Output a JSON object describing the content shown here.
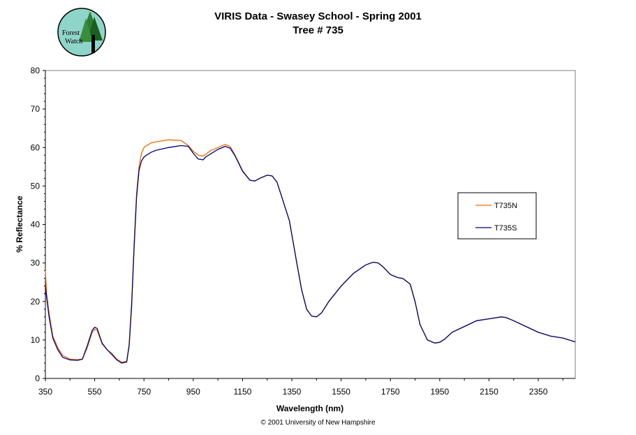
{
  "logo": {
    "line1": "Forest",
    "line2": "Watch",
    "icon": "forest-watch-logo"
  },
  "footer": {
    "copyright": "© 2001 University of New Hampshire"
  },
  "colors": {
    "T735N": "#ff6600",
    "T735S": "#000080"
  },
  "chart_data": {
    "type": "line",
    "title": "VIRIS Data - Swasey School - Spring 2001",
    "subtitle": "Tree # 735",
    "xlabel": "Wavelength (nm)",
    "ylabel": "% Reflectance",
    "xlim": [
      350,
      2500
    ],
    "ylim": [
      0,
      80
    ],
    "xticks": [
      350,
      550,
      750,
      950,
      1150,
      1350,
      1550,
      1750,
      1950,
      2150,
      2350
    ],
    "yticks": [
      0,
      10,
      20,
      30,
      40,
      50,
      60,
      70,
      80
    ],
    "grid": false,
    "legend_position": "right",
    "series": [
      {
        "name": "T735N",
        "x": [
          350,
          355,
          365,
          380,
          400,
          420,
          450,
          480,
          500,
          520,
          540,
          550,
          560,
          580,
          600,
          620,
          640,
          660,
          680,
          690,
          700,
          710,
          720,
          730,
          740,
          750,
          760,
          780,
          800,
          850,
          900,
          930,
          950,
          970,
          990,
          1000,
          1020,
          1050,
          1080,
          1100,
          1120,
          1150,
          1180,
          1200,
          1220,
          1250,
          1270,
          1290,
          1310,
          1340,
          1370,
          1390,
          1410,
          1430,
          1450,
          1470,
          1500,
          1550,
          1600,
          1650,
          1680,
          1700,
          1720,
          1750,
          1780,
          1800,
          1830,
          1850,
          1870,
          1900,
          1930,
          1950,
          1970,
          2000,
          2050,
          2100,
          2150,
          2200,
          2220,
          2250,
          2300,
          2350,
          2400,
          2450,
          2500
        ],
        "y": [
          28,
          22,
          17,
          11,
          8,
          6,
          5,
          4.9,
          5,
          8,
          12,
          12.8,
          12.5,
          9,
          7.5,
          6.5,
          5,
          4.2,
          4.5,
          9,
          20,
          35,
          48,
          55,
          58.5,
          60,
          60.5,
          61.2,
          61.5,
          62,
          61.8,
          60.5,
          59,
          58,
          57.8,
          58.2,
          59.2,
          60,
          60.8,
          60.2,
          58,
          54,
          51.5,
          51.3,
          52,
          52.8,
          52.6,
          51,
          47,
          41,
          30,
          23,
          18,
          16.2,
          16,
          17,
          20,
          24,
          27.3,
          29.5,
          30.2,
          30,
          29,
          27,
          26.2,
          26,
          24.5,
          20,
          14,
          10,
          9.2,
          9.4,
          10.2,
          12,
          13.5,
          15,
          15.5,
          16,
          15.8,
          15,
          13.5,
          12,
          11,
          10.5,
          9.5
        ]
      },
      {
        "name": "T735S",
        "x": [
          350,
          355,
          365,
          380,
          400,
          420,
          450,
          480,
          500,
          520,
          540,
          550,
          560,
          580,
          600,
          620,
          640,
          660,
          680,
          690,
          700,
          710,
          720,
          730,
          740,
          750,
          760,
          780,
          800,
          850,
          900,
          930,
          950,
          970,
          990,
          1000,
          1020,
          1050,
          1080,
          1100,
          1120,
          1150,
          1180,
          1200,
          1220,
          1250,
          1270,
          1290,
          1310,
          1340,
          1370,
          1390,
          1410,
          1430,
          1450,
          1470,
          1500,
          1550,
          1600,
          1650,
          1680,
          1700,
          1720,
          1750,
          1780,
          1800,
          1830,
          1850,
          1870,
          1900,
          1930,
          1950,
          1970,
          2000,
          2050,
          2100,
          2150,
          2200,
          2220,
          2250,
          2300,
          2350,
          2400,
          2450,
          2500
        ],
        "y": [
          24,
          21,
          16,
          10.5,
          7.5,
          5.5,
          4.8,
          4.7,
          5,
          8.5,
          12.5,
          13.3,
          13,
          9.2,
          7.5,
          6.2,
          4.8,
          4,
          4.3,
          8.5,
          19,
          34,
          47,
          54,
          56.5,
          57.5,
          58,
          58.8,
          59.3,
          60,
          60.5,
          60.3,
          58.5,
          57,
          56.8,
          57.5,
          58.3,
          59.5,
          60.3,
          59.8,
          57.8,
          53.8,
          51.5,
          51.3,
          52,
          52.8,
          52.6,
          51,
          47,
          41,
          30,
          23,
          18,
          16.2,
          16,
          17,
          20,
          24,
          27.3,
          29.5,
          30.2,
          30,
          29,
          27,
          26.2,
          26,
          24.5,
          20,
          14,
          10,
          9.2,
          9.4,
          10.2,
          12,
          13.5,
          15,
          15.5,
          16,
          15.8,
          15,
          13.5,
          12,
          11,
          10.5,
          9.5
        ]
      }
    ]
  }
}
